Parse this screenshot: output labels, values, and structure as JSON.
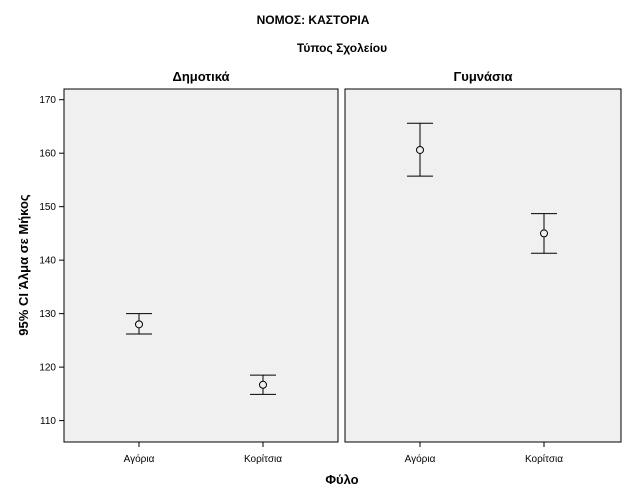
{
  "chart_data": {
    "type": "scatter",
    "subtype": "error-bar",
    "title": "ΝΟΜΟΣ: ΚΑΣΤΟΡΙΑ",
    "panel_group_label": "Τύπος Σχολείου",
    "xlabel": "Φύλο",
    "ylabel": "95% CI Άλμα σε Μήκος",
    "categories": [
      "Αγόρια",
      "Κορίτσια"
    ],
    "ylim": [
      106,
      172
    ],
    "yticks": [
      110,
      120,
      130,
      140,
      150,
      160,
      170
    ],
    "grid": false,
    "legend": "none",
    "panels": [
      {
        "name": "Δημοτικά",
        "points": [
          {
            "category": "Αγόρια",
            "mean": 128.0,
            "lower": 126.2,
            "upper": 130.0
          },
          {
            "category": "Κορίτσια",
            "mean": 116.7,
            "lower": 114.9,
            "upper": 118.5
          }
        ]
      },
      {
        "name": "Γυμνάσια",
        "points": [
          {
            "category": "Αγόρια",
            "mean": 160.6,
            "lower": 155.7,
            "upper": 165.6
          },
          {
            "category": "Κορίτσια",
            "mean": 145.0,
            "lower": 141.3,
            "upper": 148.7
          }
        ]
      }
    ],
    "colors": {
      "panel_background": "#f0f0f0",
      "panel_border": "#000000",
      "marks": "#000000"
    }
  }
}
